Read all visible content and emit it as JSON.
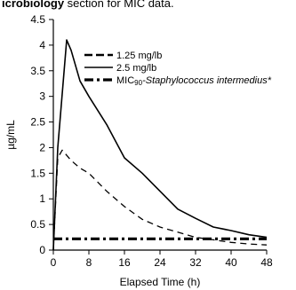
{
  "caption": {
    "bold": "icrobiology",
    "rest": " section for MIC data."
  },
  "chart_data": {
    "type": "line",
    "xlabel": "Elapsed Time (h)",
    "ylabel": "µg/mL",
    "xlim": [
      0,
      48
    ],
    "ylim": [
      0,
      4.5
    ],
    "xticks": [
      0,
      8,
      16,
      24,
      32,
      40,
      48
    ],
    "yticks": [
      0,
      0.5,
      1,
      1.5,
      2,
      2.5,
      3,
      3.5,
      4,
      4.5
    ],
    "grid": false,
    "legend_position": "top-right",
    "series": [
      {
        "name": "1.25 mg/lb",
        "style": "dashed",
        "x": [
          0,
          1,
          2,
          4,
          6,
          8,
          12,
          16,
          20,
          24,
          28,
          32,
          36,
          40,
          44,
          48
        ],
        "y": [
          0,
          1.8,
          1.95,
          1.75,
          1.6,
          1.5,
          1.15,
          0.85,
          0.6,
          0.45,
          0.35,
          0.25,
          0.2,
          0.15,
          0.12,
          0.1
        ]
      },
      {
        "name": "2.5 mg/lb",
        "style": "solid",
        "x": [
          0,
          1,
          3,
          4,
          6,
          8,
          12,
          16,
          20,
          24,
          28,
          32,
          36,
          40,
          44,
          48
        ],
        "y": [
          0,
          2.0,
          4.1,
          3.9,
          3.3,
          3.0,
          2.45,
          1.8,
          1.5,
          1.15,
          0.8,
          0.62,
          0.45,
          0.38,
          0.3,
          0.25
        ]
      },
      {
        "name": "MIC90-Staphylococcus intermedius*",
        "style": "dash-dot",
        "x": [
          0,
          48
        ],
        "y": [
          0.22,
          0.22
        ]
      }
    ]
  },
  "legend": {
    "items": [
      {
        "text": "1.25 mg/lb"
      },
      {
        "text": "2.5 mg/lb"
      },
      {
        "prefix": "MIC",
        "sub": "90",
        "rest": "-Staphylococcus intermedius*"
      }
    ]
  }
}
